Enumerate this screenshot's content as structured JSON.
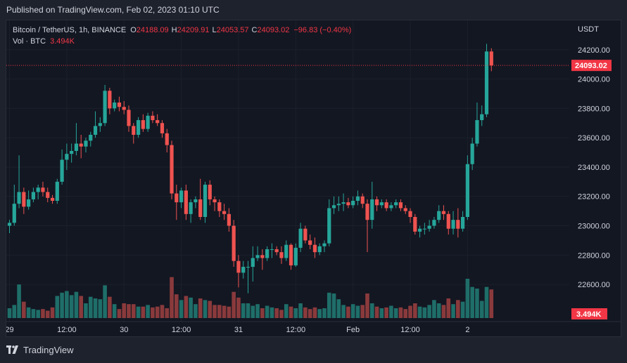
{
  "header": {
    "published": "Published on TradingView.com, Feb 02, 2023 01:10 UTC"
  },
  "legend": {
    "symbol": "Bitcoin / TetherUS, 1h, BINANCE",
    "o_label": "O",
    "o_value": "24188.09",
    "h_label": "H",
    "h_value": "24209.91",
    "l_label": "L",
    "l_value": "24053.57",
    "c_label": "C",
    "c_value": "24093.02",
    "change": "−96.83 (−0.40%)",
    "vol_label": "Vol · BTC",
    "vol_value": "3.494K"
  },
  "footer": {
    "brand": "TradingView"
  },
  "colors": {
    "up": "#26a69a",
    "down": "#ef5350",
    "vol_up": "#1f6e69",
    "vol_down": "#8a3a3c",
    "background": "#131722",
    "grid": "#2a2e39",
    "price_label": "#f23645"
  },
  "chart_data": {
    "type": "candlestick",
    "symbol": "BTCUSDT",
    "interval": "1h",
    "currency_label": "USDT",
    "y_ticks": [
      22600,
      22800,
      23000,
      23200,
      23400,
      23600,
      23800,
      24000,
      24200
    ],
    "y_tick_labels": [
      "22600.00",
      "22800.00",
      "23000.00",
      "23200.00",
      "23400.00",
      "23600.00",
      "23800.00",
      "24000.00",
      "24200.00"
    ],
    "ylim": [
      22390,
      24400
    ],
    "x_tick_labels": [
      {
        "i": 0,
        "label": "29"
      },
      {
        "i": 12,
        "label": "12:00"
      },
      {
        "i": 24,
        "label": "30"
      },
      {
        "i": 36,
        "label": "12:00"
      },
      {
        "i": 48,
        "label": "31"
      },
      {
        "i": 60,
        "label": "12:00"
      },
      {
        "i": 72,
        "label": "Feb"
      },
      {
        "i": 84,
        "label": "12:00"
      },
      {
        "i": 96,
        "label": "2"
      }
    ],
    "last_price": 24093.02,
    "last_price_label": "24093.02",
    "last_volume_label": "3.494K",
    "volume_max": 6000,
    "candles": [
      [
        23000,
        23040,
        22950,
        23020,
        1200
      ],
      [
        23020,
        23280,
        23000,
        23150,
        1600
      ],
      [
        23150,
        23480,
        23120,
        23230,
        4100
      ],
      [
        23230,
        23260,
        23080,
        23130,
        2000
      ],
      [
        23130,
        23240,
        23110,
        23180,
        1300
      ],
      [
        23180,
        23260,
        23160,
        23230,
        1100
      ],
      [
        23230,
        23280,
        23180,
        23260,
        1000
      ],
      [
        23260,
        23300,
        23200,
        23230,
        1100
      ],
      [
        23230,
        23260,
        23160,
        23190,
        900
      ],
      [
        23190,
        23210,
        23150,
        23170,
        1300
      ],
      [
        23170,
        23320,
        23150,
        23300,
        2700
      ],
      [
        23300,
        23520,
        23280,
        23450,
        3100
      ],
      [
        23450,
        23560,
        23380,
        23490,
        3300
      ],
      [
        23490,
        23560,
        23430,
        23510,
        2800
      ],
      [
        23510,
        23700,
        23480,
        23560,
        3200
      ],
      [
        23560,
        23620,
        23460,
        23540,
        2700
      ],
      [
        23540,
        23600,
        23500,
        23580,
        1800
      ],
      [
        23580,
        23640,
        23540,
        23620,
        2600
      ],
      [
        23620,
        23780,
        23600,
        23680,
        2400
      ],
      [
        23680,
        23740,
        23640,
        23700,
        2300
      ],
      [
        23700,
        23960,
        23680,
        23920,
        4000
      ],
      [
        23920,
        23940,
        23760,
        23800,
        2600
      ],
      [
        23800,
        23860,
        23780,
        23840,
        1700
      ],
      [
        23840,
        23880,
        23780,
        23810,
        1100
      ],
      [
        23810,
        23850,
        23760,
        23790,
        1800
      ],
      [
        23790,
        23820,
        23640,
        23680,
        1700
      ],
      [
        23680,
        23700,
        23560,
        23620,
        1700
      ],
      [
        23620,
        23740,
        23600,
        23720,
        1400
      ],
      [
        23720,
        23760,
        23640,
        23660,
        1400
      ],
      [
        23660,
        23770,
        23640,
        23750,
        1600
      ],
      [
        23750,
        23780,
        23700,
        23720,
        1300
      ],
      [
        23720,
        23760,
        23680,
        23700,
        1400
      ],
      [
        23700,
        23720,
        23600,
        23630,
        1600
      ],
      [
        23630,
        23660,
        23500,
        23550,
        1200
      ],
      [
        23550,
        23580,
        23180,
        23220,
        5000
      ],
      [
        23220,
        23280,
        23040,
        23160,
        2900
      ],
      [
        23160,
        23260,
        23120,
        23240,
        2200
      ],
      [
        23240,
        23280,
        23040,
        23080,
        2700
      ],
      [
        23080,
        23180,
        23020,
        23160,
        2500
      ],
      [
        23160,
        23200,
        23120,
        23180,
        1700
      ],
      [
        23180,
        23320,
        23040,
        23060,
        2400
      ],
      [
        23060,
        23300,
        23020,
        23280,
        2200
      ],
      [
        23280,
        23310,
        23140,
        23180,
        2100
      ],
      [
        23180,
        23200,
        23100,
        23160,
        1600
      ],
      [
        23160,
        23180,
        23060,
        23100,
        1600
      ],
      [
        23100,
        23150,
        23040,
        23080,
        1500
      ],
      [
        23080,
        23120,
        22960,
        23000,
        1400
      ],
      [
        23000,
        23040,
        22720,
        22760,
        3200
      ],
      [
        22760,
        22800,
        22580,
        22680,
        2500
      ],
      [
        22680,
        22760,
        22640,
        22720,
        1800
      ],
      [
        22720,
        22760,
        22540,
        22720,
        1800
      ],
      [
        22720,
        22860,
        22620,
        22780,
        1500
      ],
      [
        22780,
        22860,
        22760,
        22800,
        1700
      ],
      [
        22800,
        22840,
        22700,
        22780,
        1200
      ],
      [
        22780,
        22860,
        22760,
        22840,
        1500
      ],
      [
        22840,
        22880,
        22780,
        22840,
        1300
      ],
      [
        22840,
        22860,
        22800,
        22820,
        1200
      ],
      [
        22820,
        22860,
        22740,
        22780,
        1000
      ],
      [
        22780,
        22900,
        22760,
        22870,
        1700
      ],
      [
        22870,
        22880,
        22700,
        22730,
        1400
      ],
      [
        22730,
        22880,
        22720,
        22850,
        1200
      ],
      [
        22850,
        23020,
        22820,
        22980,
        1800
      ],
      [
        22980,
        23000,
        22880,
        22900,
        1300
      ],
      [
        22900,
        22940,
        22840,
        22870,
        1100
      ],
      [
        22870,
        22920,
        22780,
        22820,
        1300
      ],
      [
        22820,
        22880,
        22800,
        22860,
        1100
      ],
      [
        22860,
        22900,
        22820,
        22880,
        1200
      ],
      [
        22880,
        23180,
        22860,
        23120,
        3100
      ],
      [
        23120,
        23200,
        23080,
        23140,
        3000
      ],
      [
        23140,
        23200,
        23100,
        23150,
        2300
      ],
      [
        23150,
        23220,
        23100,
        23160,
        1600
      ],
      [
        23160,
        23190,
        23120,
        23140,
        1400
      ],
      [
        23140,
        23200,
        23120,
        23170,
        1700
      ],
      [
        23170,
        23240,
        23140,
        23200,
        1500
      ],
      [
        23200,
        23220,
        23120,
        23150,
        1600
      ],
      [
        23150,
        23180,
        22820,
        23040,
        3000
      ],
      [
        23040,
        23300,
        22980,
        23180,
        1800
      ],
      [
        23180,
        23200,
        23100,
        23140,
        1400
      ],
      [
        23140,
        23180,
        23120,
        23160,
        1200
      ],
      [
        23160,
        23180,
        23100,
        23120,
        1300
      ],
      [
        23120,
        23160,
        23100,
        23140,
        1500
      ],
      [
        23140,
        23180,
        23120,
        23160,
        1200
      ],
      [
        23160,
        23180,
        23100,
        23120,
        1300
      ],
      [
        23120,
        23140,
        23080,
        23100,
        1100
      ],
      [
        23100,
        23120,
        23020,
        23060,
        1500
      ],
      [
        23060,
        23080,
        22940,
        22960,
        1800
      ],
      [
        22960,
        23000,
        22920,
        22980,
        1400
      ],
      [
        22980,
        23020,
        22940,
        22980,
        1300
      ],
      [
        22980,
        23040,
        22960,
        23000,
        1600
      ],
      [
        23000,
        23060,
        22980,
        23040,
        2200
      ],
      [
        23040,
        23140,
        23020,
        23100,
        1800
      ],
      [
        23100,
        23140,
        23040,
        23080,
        1600
      ],
      [
        23080,
        23100,
        22940,
        22980,
        2400
      ],
      [
        22980,
        23100,
        22940,
        23040,
        1700
      ],
      [
        23040,
        23120,
        22920,
        22980,
        2200
      ],
      [
        22980,
        23100,
        22960,
        23060,
        2000
      ],
      [
        23060,
        23480,
        23040,
        23420,
        4800
      ],
      [
        23420,
        23600,
        23380,
        23560,
        3800
      ],
      [
        23560,
        23840,
        23540,
        23720,
        3600
      ],
      [
        23720,
        23820,
        23680,
        23760,
        2100
      ],
      [
        23760,
        24240,
        23740,
        24188,
        3800
      ],
      [
        24188.09,
        24209.91,
        24053.57,
        24093.02,
        3494
      ]
    ]
  }
}
